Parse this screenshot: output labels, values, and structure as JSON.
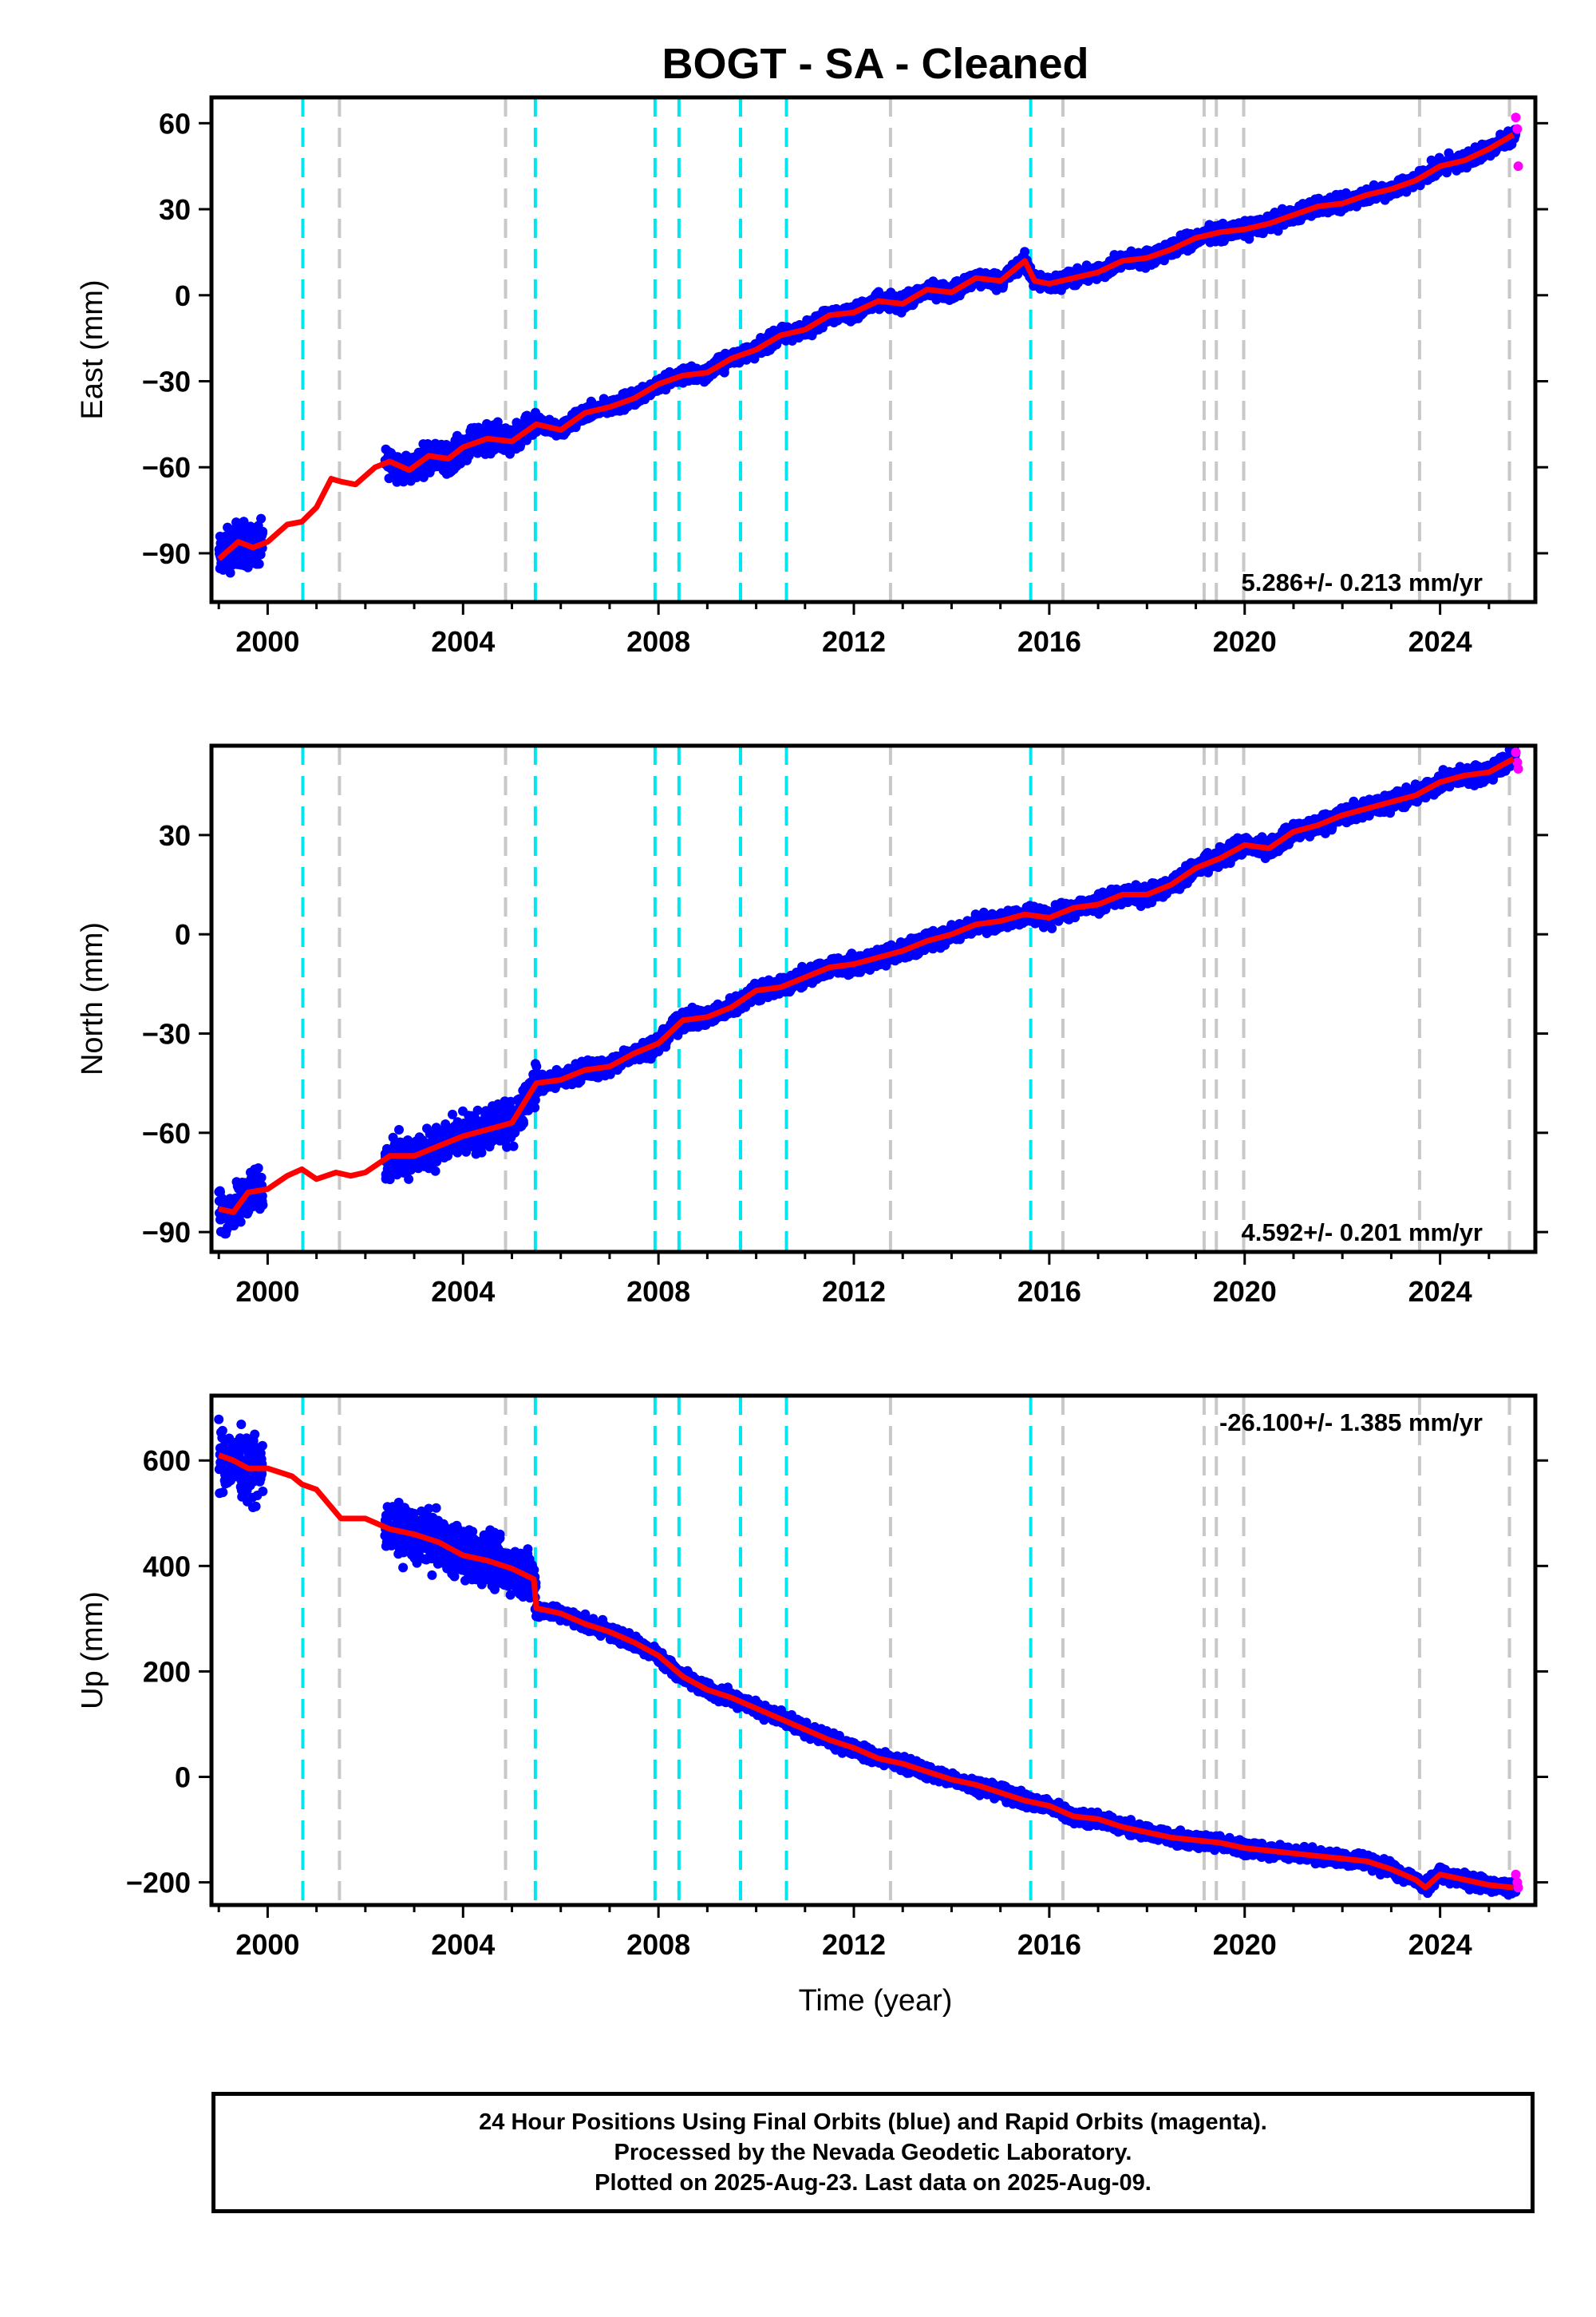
{
  "title": "BOGT  - SA - Cleaned",
  "xlabel": "Time (year)",
  "footer": {
    "line1": "24 Hour Positions Using Final Orbits (blue) and Rapid Orbits (magenta).",
    "line2": "Processed by the Nevada Geodetic Laboratory.",
    "line3": "Plotted on 2025-Aug-23. Last data on 2025-Aug-09."
  },
  "colors": {
    "final": "#0000ff",
    "rapid": "#ff00ff",
    "model": "#ff0000",
    "cyan_line": "#00e5ee",
    "gray_line": "#c8c8c8"
  },
  "chart_data": [
    {
      "type": "scatter",
      "panel": "east",
      "ylabel": "East (mm)",
      "rate_label": "5.286+/- 0.213 mm/yr",
      "xlim": [
        1998.85,
        2025.95
      ],
      "ylim": [
        -107,
        69
      ],
      "xticks": [
        2000,
        2004,
        2008,
        2012,
        2016,
        2020,
        2024
      ],
      "yticks": [
        -90,
        -60,
        -30,
        0,
        30,
        60
      ],
      "model": {
        "x": [
          1999.0,
          1999.4,
          1999.7,
          2000.0,
          2000.4,
          2000.7,
          2001.0,
          2001.3,
          2001.5,
          2001.8,
          2002.2,
          2002.5,
          2002.9,
          2003.3,
          2003.7,
          2004.0,
          2004.5,
          2005.0,
          2005.5,
          2006.0,
          2006.5,
          2007.0,
          2007.5,
          2008.0,
          2008.5,
          2009.0,
          2009.5,
          2010.0,
          2010.5,
          2011.0,
          2011.5,
          2012.0,
          2012.5,
          2013.0,
          2013.5,
          2014.0,
          2014.5,
          2015.0,
          2015.5,
          2015.7,
          2016.0,
          2016.5,
          2017.0,
          2017.5,
          2018.0,
          2018.5,
          2019.0,
          2019.5,
          2020.0,
          2020.5,
          2021.0,
          2021.5,
          2022.0,
          2022.5,
          2023.0,
          2023.5,
          2024.0,
          2024.5,
          2025.0,
          2025.5
        ],
        "y": [
          -92,
          -86,
          -88,
          -86,
          -80,
          -79,
          -74,
          -64,
          -65,
          -66,
          -60,
          -58,
          -61,
          -56,
          -57,
          -53,
          -50,
          -51,
          -45,
          -47,
          -41,
          -39,
          -36,
          -31,
          -28,
          -27,
          -22,
          -19,
          -14,
          -12,
          -7,
          -6,
          -2,
          -3,
          2,
          1,
          6,
          5,
          12,
          5,
          4,
          6,
          8,
          12,
          13,
          16,
          20,
          22,
          23,
          25,
          28,
          31,
          32,
          35,
          37,
          40,
          45,
          47,
          51,
          56
        ]
      },
      "data_segments": [
        {
          "x0": 1999.0,
          "x1": 1999.9,
          "y0": -92,
          "y1": -86,
          "spread": 7
        },
        {
          "x0": 2002.4,
          "x1": 2005.5,
          "y0": -60,
          "y1": -46,
          "spread": 4.5
        },
        {
          "x0": 2005.5,
          "x1": 2015.7,
          "y0": -46,
          "y1": 12,
          "spread": 2.5
        },
        {
          "x0": 2015.7,
          "x1": 2025.55,
          "y0": 4,
          "y1": 56,
          "spread": 2.5
        }
      ],
      "rapid_points": [
        [
          2025.55,
          62
        ],
        [
          2025.58,
          58
        ],
        [
          2025.6,
          45
        ]
      ]
    },
    {
      "type": "scatter",
      "panel": "north",
      "ylabel": "North (mm)",
      "rate_label": "4.592+/- 0.201 mm/yr",
      "xlim": [
        1998.85,
        2025.95
      ],
      "ylim": [
        -96,
        57
      ],
      "xticks": [
        2000,
        2004,
        2008,
        2012,
        2016,
        2020,
        2024
      ],
      "yticks": [
        -90,
        -60,
        -30,
        0,
        30
      ],
      "model": {
        "x": [
          1999.0,
          1999.3,
          1999.6,
          2000.0,
          2000.4,
          2000.7,
          2001.0,
          2001.4,
          2001.7,
          2002.0,
          2002.5,
          2003.0,
          2003.5,
          2004.0,
          2004.5,
          2005.0,
          2005.5,
          2006.0,
          2006.5,
          2007.0,
          2007.5,
          2008.0,
          2008.5,
          2009.0,
          2009.5,
          2010.0,
          2010.5,
          2011.0,
          2011.5,
          2012.0,
          2012.5,
          2013.0,
          2013.5,
          2014.0,
          2014.5,
          2015.0,
          2015.5,
          2016.0,
          2016.5,
          2017.0,
          2017.5,
          2018.0,
          2018.5,
          2019.0,
          2019.5,
          2020.0,
          2020.5,
          2021.0,
          2021.5,
          2022.0,
          2022.5,
          2023.0,
          2023.5,
          2024.0,
          2024.5,
          2025.0,
          2025.5
        ],
        "y": [
          -83,
          -84,
          -78,
          -77,
          -73,
          -71,
          -74,
          -72,
          -73,
          -72,
          -67,
          -67,
          -64,
          -61,
          -59,
          -57,
          -45,
          -44,
          -41,
          -40,
          -36,
          -33,
          -26,
          -25,
          -22,
          -17,
          -16,
          -13,
          -10,
          -9,
          -7,
          -5,
          -2,
          0,
          3,
          4,
          6,
          5,
          8,
          9,
          12,
          12,
          15,
          20,
          23,
          27,
          26,
          31,
          33,
          36,
          38,
          40,
          42,
          46,
          48,
          49,
          53
        ]
      },
      "data_segments": [
        {
          "x0": 1999.0,
          "x1": 1999.9,
          "y0": -83,
          "y1": -76,
          "spread": 6
        },
        {
          "x0": 2002.4,
          "x1": 2005.5,
          "y0": -68,
          "y1": -55,
          "spread": 5.5
        },
        {
          "x0": 2005.5,
          "x1": 2015.6,
          "y0": -45,
          "y1": 6,
          "spread": 2.5
        },
        {
          "x0": 2015.6,
          "x1": 2025.55,
          "y0": 6,
          "y1": 53,
          "spread": 2.5
        }
      ],
      "rapid_points": [
        [
          2025.55,
          55
        ],
        [
          2025.58,
          52
        ],
        [
          2025.6,
          50
        ]
      ]
    },
    {
      "type": "scatter",
      "panel": "up",
      "ylabel": "Up (mm)",
      "rate_label": "-26.100+/- 1.385 mm/yr",
      "xlim": [
        1998.85,
        2025.95
      ],
      "ylim": [
        -243,
        723
      ],
      "xticks": [
        2000,
        2004,
        2008,
        2012,
        2016,
        2020,
        2024
      ],
      "yticks": [
        -200,
        0,
        200,
        400,
        600
      ],
      "model": {
        "x": [
          1999.0,
          1999.3,
          1999.6,
          2000.0,
          2000.5,
          2000.7,
          2001.0,
          2001.5,
          2002.0,
          2002.5,
          2003.0,
          2003.5,
          2004.0,
          2004.5,
          2005.0,
          2005.45,
          2005.5,
          2006.0,
          2006.5,
          2007.0,
          2007.5,
          2008.0,
          2008.5,
          2009.0,
          2009.5,
          2010.0,
          2010.5,
          2011.0,
          2011.5,
          2012.0,
          2012.5,
          2013.0,
          2013.5,
          2014.0,
          2014.5,
          2015.0,
          2015.5,
          2016.0,
          2016.5,
          2017.0,
          2017.5,
          2018.0,
          2018.5,
          2019.0,
          2019.5,
          2020.0,
          2020.5,
          2021.0,
          2021.5,
          2022.0,
          2022.5,
          2023.0,
          2023.5,
          2023.7,
          2024.0,
          2024.5,
          2025.0,
          2025.5
        ],
        "y": [
          610,
          600,
          585,
          585,
          570,
          555,
          545,
          490,
          490,
          470,
          460,
          445,
          420,
          410,
          395,
          375,
          320,
          310,
          290,
          275,
          255,
          230,
          190,
          165,
          150,
          130,
          110,
          90,
          70,
          55,
          35,
          25,
          10,
          -5,
          -15,
          -30,
          -45,
          -55,
          -75,
          -80,
          -95,
          -105,
          -115,
          -120,
          -125,
          -135,
          -140,
          -145,
          -150,
          -155,
          -160,
          -175,
          -195,
          -210,
          -185,
          -195,
          -205,
          -210
        ]
      },
      "data_segments": [
        {
          "x0": 1999.0,
          "x1": 1999.9,
          "y0": 610,
          "y1": 600,
          "spread": 55
        },
        {
          "x0": 2002.4,
          "x1": 2005.5,
          "y0": 470,
          "y1": 380,
          "spread": 45
        },
        {
          "x0": 2005.5,
          "x1": 2015.6,
          "y0": 330,
          "y1": -40,
          "spread": 12
        },
        {
          "x0": 2015.6,
          "x1": 2025.55,
          "y0": -45,
          "y1": -210,
          "spread": 12
        }
      ],
      "rapid_points": [
        [
          2025.55,
          -185
        ],
        [
          2025.58,
          -200
        ],
        [
          2025.6,
          -210
        ]
      ]
    }
  ],
  "event_lines": {
    "cyan": [
      2000.72,
      2005.48,
      2007.93,
      2008.42,
      2009.68,
      2010.62,
      2015.62
    ],
    "gray": [
      2001.47,
      2004.87,
      2012.75,
      2016.28,
      2019.17,
      2019.42,
      2019.98,
      2023.58,
      2025.42
    ]
  }
}
